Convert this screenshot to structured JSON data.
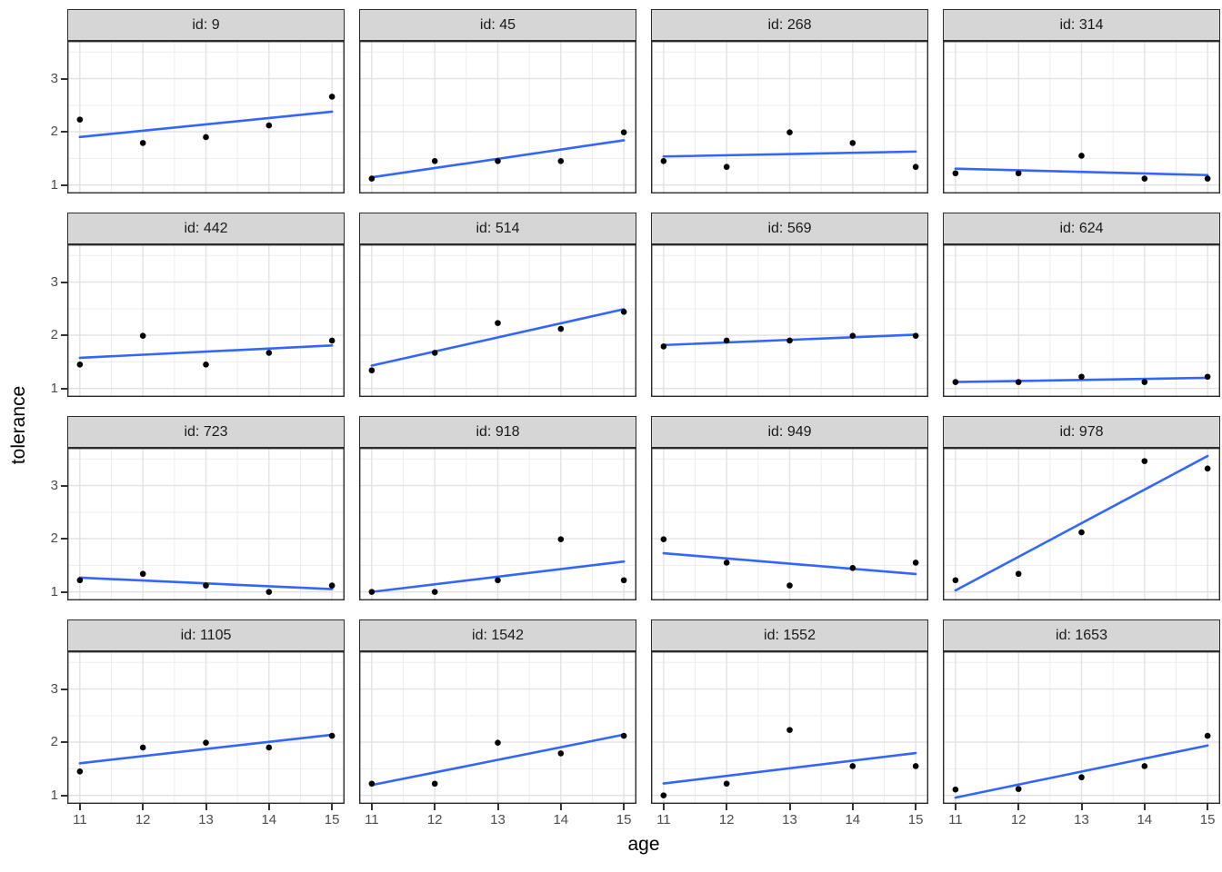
{
  "figure": {
    "x_axis_title": "age",
    "y_axis_title": "tolerance"
  },
  "chart_data": {
    "type": "scatter",
    "title": "",
    "xlabel": "age",
    "ylabel": "tolerance",
    "facet_variable": "id",
    "x": [
      11,
      12,
      13,
      14,
      15
    ],
    "xlim": [
      10.8,
      15.2
    ],
    "ylim": [
      0.84,
      3.71
    ],
    "x_ticks": [
      11,
      12,
      13,
      14,
      15
    ],
    "y_ticks": [
      1,
      2,
      3
    ],
    "x_minor": [
      11.5,
      12.5,
      13.5,
      14.5
    ],
    "y_minor": [
      1.5,
      2.5,
      3.5
    ],
    "grid": true,
    "legend": "none",
    "trend": "per-facet OLS linear fit, no confidence band",
    "facets": [
      {
        "label": "id: 9",
        "id": 9,
        "values": [
          2.23,
          1.79,
          1.9,
          2.12,
          2.66
        ]
      },
      {
        "label": "id: 45",
        "id": 45,
        "values": [
          1.12,
          1.45,
          1.45,
          1.45,
          1.99
        ]
      },
      {
        "label": "id: 268",
        "id": 268,
        "values": [
          1.45,
          1.34,
          1.99,
          1.79,
          1.34
        ]
      },
      {
        "label": "id: 314",
        "id": 314,
        "values": [
          1.22,
          1.22,
          1.55,
          1.12,
          1.12
        ]
      },
      {
        "label": "id: 442",
        "id": 442,
        "values": [
          1.45,
          1.99,
          1.45,
          1.67,
          1.9
        ]
      },
      {
        "label": "id: 514",
        "id": 514,
        "values": [
          1.34,
          1.67,
          2.23,
          2.12,
          2.44
        ]
      },
      {
        "label": "id: 569",
        "id": 569,
        "values": [
          1.79,
          1.9,
          1.9,
          1.99,
          1.99
        ]
      },
      {
        "label": "id: 624",
        "id": 624,
        "values": [
          1.12,
          1.12,
          1.22,
          1.12,
          1.22
        ]
      },
      {
        "label": "id: 723",
        "id": 723,
        "values": [
          1.22,
          1.34,
          1.12,
          1.0,
          1.12
        ]
      },
      {
        "label": "id: 918",
        "id": 918,
        "values": [
          1.0,
          1.0,
          1.22,
          1.99,
          1.22
        ]
      },
      {
        "label": "id: 949",
        "id": 949,
        "values": [
          1.99,
          1.55,
          1.12,
          1.45,
          1.55
        ]
      },
      {
        "label": "id: 978",
        "id": 978,
        "values": [
          1.22,
          1.34,
          2.12,
          3.46,
          3.32
        ]
      },
      {
        "label": "id: 1105",
        "id": 1105,
        "values": [
          1.45,
          1.9,
          1.99,
          1.9,
          2.12
        ]
      },
      {
        "label": "id: 1542",
        "id": 1542,
        "values": [
          1.22,
          1.22,
          1.99,
          1.79,
          2.12
        ]
      },
      {
        "label": "id: 1552",
        "id": 1552,
        "values": [
          1.0,
          1.22,
          2.23,
          1.55,
          1.55
        ]
      },
      {
        "label": "id: 1653",
        "id": 1653,
        "values": [
          1.11,
          1.12,
          1.34,
          1.55,
          2.12
        ]
      }
    ],
    "colors": {
      "point": "#000000",
      "trend_line": "#3366FF",
      "strip_background": "#D6D6D6",
      "strip_border": "#2b2b2b",
      "panel_border": "#2b2b2b",
      "panel_background": "#FFFFFF",
      "grid_major": "#E2E2E2",
      "grid_minor": "#EDEDED",
      "tick_mark": "#333333",
      "tick_label": "#4d4d4d",
      "axis_title": "#000000"
    }
  }
}
